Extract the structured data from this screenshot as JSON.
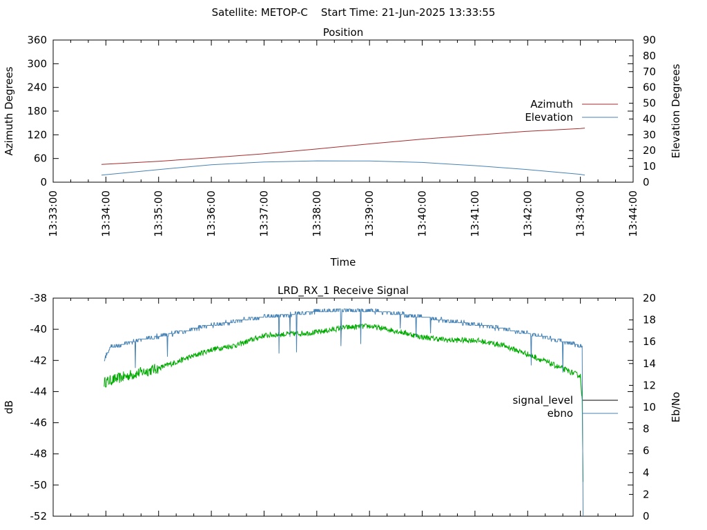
{
  "header": {
    "title": "Satellite: METOP-C    Start Time: 21-Jun-2025 13:33:55"
  },
  "chart_data": [
    {
      "id": "position",
      "type": "line",
      "title": "Position",
      "xlabel": "Time",
      "ylabel": "Azimuth Degrees",
      "y2label": "Elevation Degrees",
      "xlim": [
        "13:33:00",
        "13:44:00"
      ],
      "xticks": [
        "13:33:00",
        "13:34:00",
        "13:35:00",
        "13:36:00",
        "13:37:00",
        "13:38:00",
        "13:39:00",
        "13:40:00",
        "13:41:00",
        "13:42:00",
        "13:43:00",
        "13:44:00"
      ],
      "ylim": [
        0,
        360
      ],
      "yticks": [
        "0",
        "60",
        "120",
        "180",
        "240",
        "300",
        "360"
      ],
      "y2lim": [
        0,
        90
      ],
      "y2ticks": [
        "0",
        "10",
        "20",
        "30",
        "40",
        "50",
        "60",
        "70",
        "80",
        "90"
      ],
      "legend_position": "right",
      "series": [
        {
          "name": "Azimuth",
          "axis": "y",
          "color": "#a52a2a",
          "points": [
            [
              "13:33:55",
              45
            ],
            [
              "13:35:00",
              53
            ],
            [
              "13:36:00",
              62
            ],
            [
              "13:37:00",
              72
            ],
            [
              "13:38:00",
              84
            ],
            [
              "13:39:00",
              97
            ],
            [
              "13:40:00",
              109
            ],
            [
              "13:41:00",
              119
            ],
            [
              "13:42:00",
              129
            ],
            [
              "13:43:00",
              136
            ],
            [
              "13:43:05",
              137
            ]
          ]
        },
        {
          "name": "Elevation",
          "axis": "y2",
          "color": "#4682b4",
          "points": [
            [
              "13:33:55",
              4.5
            ],
            [
              "13:35:00",
              8
            ],
            [
              "13:36:00",
              11
            ],
            [
              "13:37:00",
              12.8
            ],
            [
              "13:38:00",
              13.5
            ],
            [
              "13:39:00",
              13.4
            ],
            [
              "13:40:00",
              12.5
            ],
            [
              "13:41:00",
              10.5
            ],
            [
              "13:42:00",
              8
            ],
            [
              "13:43:00",
              5
            ],
            [
              "13:43:05",
              4.5
            ]
          ]
        }
      ]
    },
    {
      "id": "receive_signal",
      "type": "line",
      "title": "LRD_RX_1 Receive Signal",
      "ylabel": "dB",
      "y2label": "Eb/No",
      "xlim": [
        "13:33:00",
        "13:44:00"
      ],
      "ylim": [
        -52,
        -38
      ],
      "yticks": [
        "-38",
        "-40",
        "-42",
        "-44",
        "-46",
        "-48",
        "-50",
        "-52"
      ],
      "y2lim": [
        0,
        20
      ],
      "y2ticks": [
        "0",
        "2",
        "4",
        "6",
        "8",
        "10",
        "12",
        "14",
        "16",
        "18",
        "20"
      ],
      "legend_position": "right",
      "series": [
        {
          "name": "signal_level",
          "axis": "y",
          "color": "#00aa00",
          "points": [
            [
              "13:33:58",
              -43.4
            ],
            [
              "13:34:30",
              -42.9
            ],
            [
              "13:35:00",
              -42.5
            ],
            [
              "13:35:30",
              -41.9
            ],
            [
              "13:36:00",
              -41.3
            ],
            [
              "13:36:30",
              -41.0
            ],
            [
              "13:37:00",
              -40.4
            ],
            [
              "13:37:30",
              -40.3
            ],
            [
              "13:38:00",
              -40.2
            ],
            [
              "13:38:30",
              -39.9
            ],
            [
              "13:39:00",
              -39.8
            ],
            [
              "13:39:30",
              -40.1
            ],
            [
              "13:40:00",
              -40.5
            ],
            [
              "13:40:30",
              -40.7
            ],
            [
              "13:41:00",
              -40.7
            ],
            [
              "13:41:30",
              -41.0
            ],
            [
              "13:42:00",
              -41.6
            ],
            [
              "13:42:30",
              -42.3
            ],
            [
              "13:43:00",
              -43.0
            ],
            [
              "13:43:02",
              -44.5
            ],
            [
              "13:43:03",
              -49.8
            ]
          ]
        },
        {
          "name": "ebno",
          "axis": "y2",
          "color": "#4682b4",
          "points": [
            [
              "13:33:58",
              14.3
            ],
            [
              "13:34:05",
              15.5
            ],
            [
              "13:34:30",
              16.0
            ],
            [
              "13:35:00",
              16.5
            ],
            [
              "13:35:30",
              17.0
            ],
            [
              "13:36:00",
              17.5
            ],
            [
              "13:36:30",
              17.9
            ],
            [
              "13:37:00",
              18.3
            ],
            [
              "13:37:30",
              18.5
            ],
            [
              "13:38:00",
              18.8
            ],
            [
              "13:38:30",
              18.9
            ],
            [
              "13:39:00",
              18.8
            ],
            [
              "13:39:30",
              18.6
            ],
            [
              "13:40:00",
              18.3
            ],
            [
              "13:40:30",
              17.9
            ],
            [
              "13:41:00",
              17.6
            ],
            [
              "13:41:30",
              17.2
            ],
            [
              "13:42:00",
              16.8
            ],
            [
              "13:42:30",
              16.2
            ],
            [
              "13:43:00",
              15.6
            ],
            [
              "13:43:02",
              15.6
            ],
            [
              "13:43:03",
              0
            ]
          ]
        }
      ]
    }
  ]
}
